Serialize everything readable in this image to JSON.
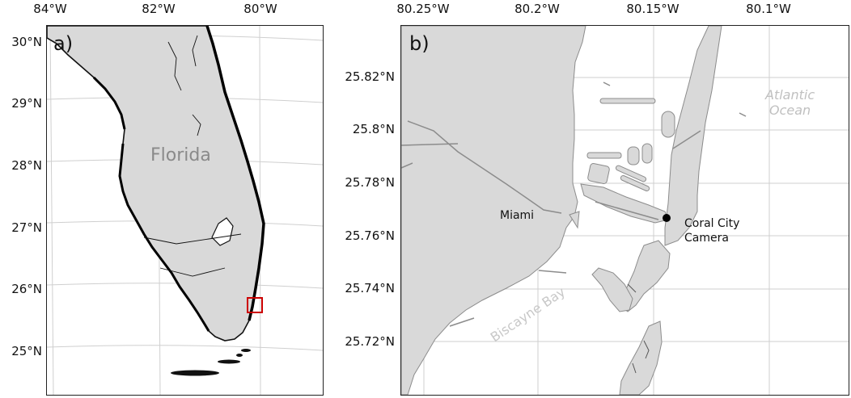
{
  "panel_a": {
    "label": "a)",
    "x_ticks": [
      "84°W",
      "82°W",
      "80°W"
    ],
    "y_ticks": [
      "30°N",
      "29°N",
      "28°N",
      "27°N",
      "26°N",
      "25°N"
    ],
    "state_label": "Florida",
    "colors": {
      "land": "#d9d9d9",
      "coast": "#111111",
      "box": "#cc0000",
      "grid": "#cccccc"
    }
  },
  "panel_b": {
    "label": "b)",
    "x_ticks": [
      "80.25°W",
      "80.2°W",
      "80.15°W",
      "80.1°W"
    ],
    "y_ticks": [
      "25.82°N",
      "25.8°N",
      "25.78°N",
      "25.76°N",
      "25.74°N",
      "25.72°N"
    ],
    "ocean_label_line1": "Atlantic",
    "ocean_label_line2": "Ocean",
    "bay_label": "Biscayne Bay",
    "city_label": "Miami",
    "camera_label_line1": "Coral City",
    "camera_label_line2": "Camera",
    "colors": {
      "land": "#d9d9d9",
      "coast": "#8c8c8c",
      "marker": "#000000",
      "grid": "#cccccc"
    }
  }
}
